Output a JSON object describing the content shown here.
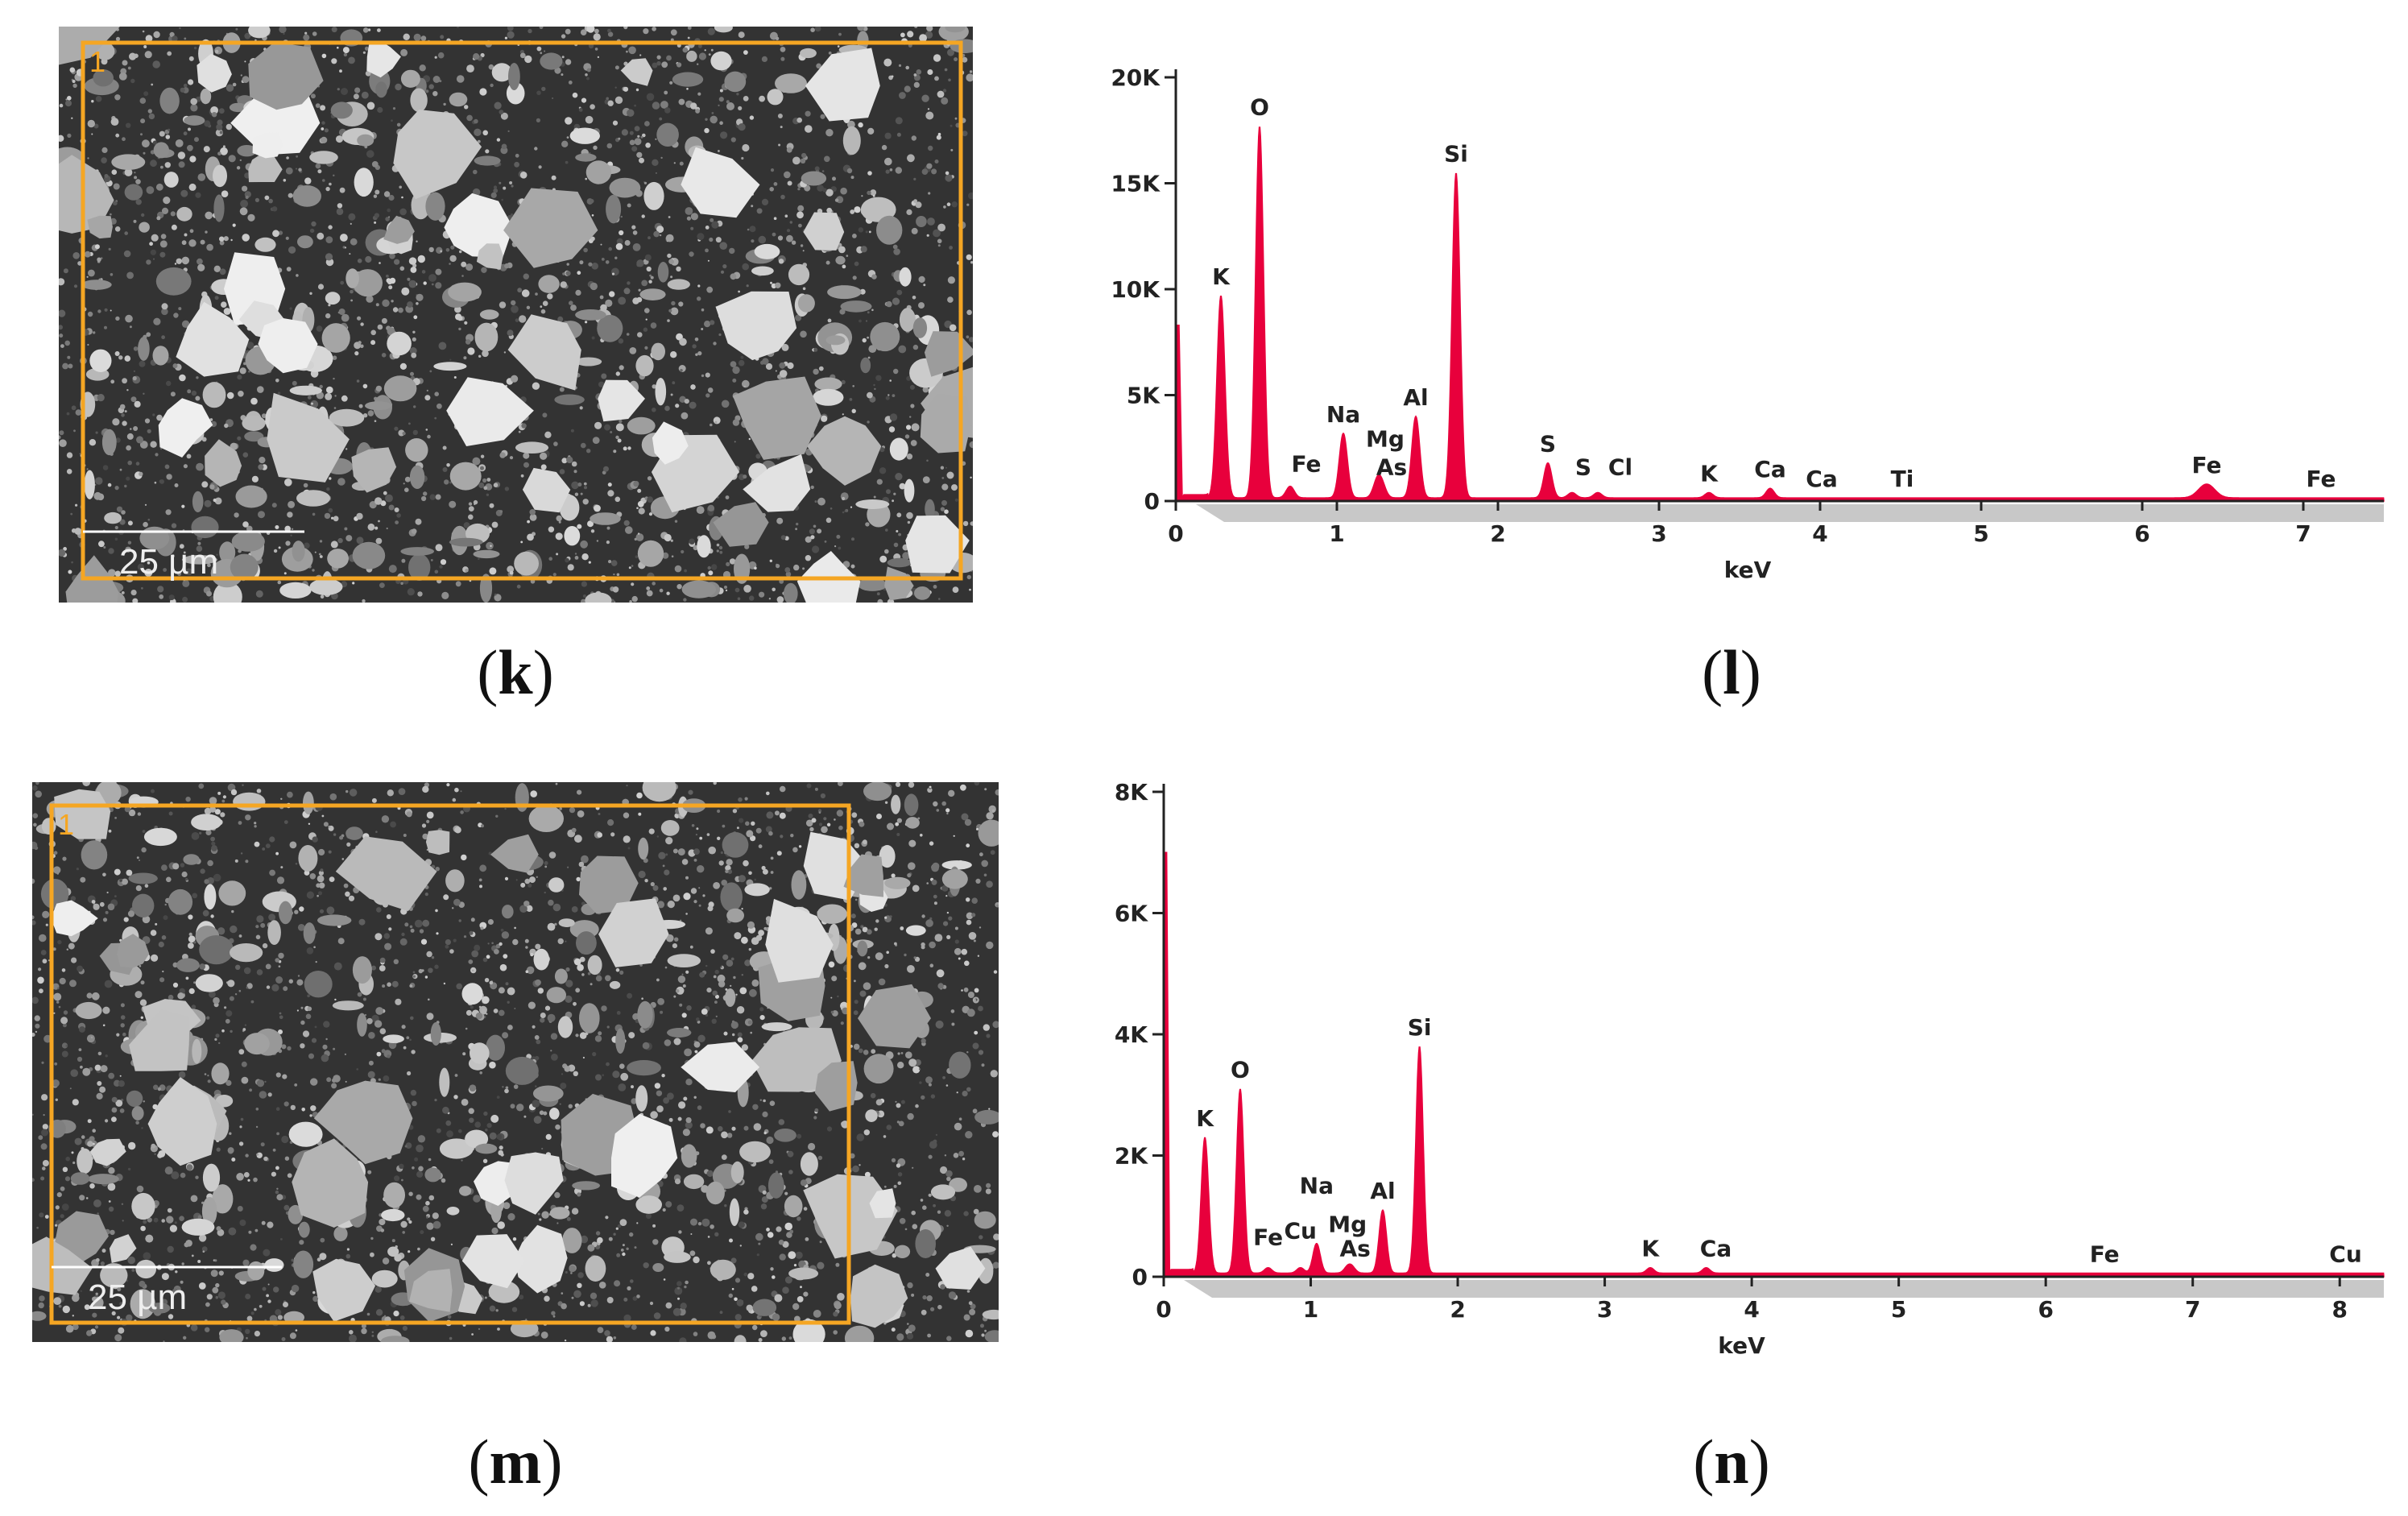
{
  "figure": {
    "panels": [
      {
        "id": "k",
        "caption_open": "(",
        "caption_letter": "k",
        "caption_close": ")",
        "type": "sem",
        "scale_label": "25 µm",
        "roi_label": "1"
      },
      {
        "id": "l",
        "caption_open": "(",
        "caption_letter": "l",
        "caption_close": ")",
        "type": "eds"
      },
      {
        "id": "m",
        "caption_open": "(",
        "caption_letter": "m",
        "caption_close": ")",
        "type": "sem",
        "scale_label": "25 µm",
        "roi_label": "1"
      },
      {
        "id": "n",
        "caption_open": "(",
        "caption_letter": "n",
        "caption_close": ")",
        "type": "eds"
      }
    ]
  },
  "colors": {
    "spectrum": "#e8003c",
    "roi": "#f5a623",
    "axis": "#222222",
    "shade": "#c8c8c8"
  },
  "chart_data": [
    {
      "panel": "l",
      "type": "line",
      "title": "",
      "xlabel": "keV",
      "ylabel": "",
      "xlim": [
        0,
        7.5
      ],
      "ylim": [
        0,
        20000
      ],
      "x_ticks": [
        0,
        1,
        2,
        3,
        4,
        5,
        6,
        7
      ],
      "y_ticks": [
        {
          "value": 0,
          "label": "0"
        },
        {
          "value": 5000,
          "label": "5K"
        },
        {
          "value": 10000,
          "label": "10K"
        },
        {
          "value": 15000,
          "label": "15K"
        },
        {
          "value": 20000,
          "label": "20K"
        }
      ],
      "baseline_counts": 150,
      "start_counts": 8300,
      "peaks": [
        {
          "element": "K",
          "kev": 0.28,
          "counts": 9700
        },
        {
          "element": "O",
          "kev": 0.52,
          "counts": 17700
        },
        {
          "element": "Fe",
          "kev": 0.71,
          "counts": 700
        },
        {
          "element": "Na",
          "kev": 1.04,
          "counts": 3200
        },
        {
          "element": "Mg",
          "kev": 1.25,
          "counts": 900
        },
        {
          "element": "As",
          "kev": 1.28,
          "counts": 700
        },
        {
          "element": "Al",
          "kev": 1.49,
          "counts": 4000
        },
        {
          "element": "Si",
          "kev": 1.74,
          "counts": 15500
        },
        {
          "element": "S",
          "kev": 2.31,
          "counts": 1800
        },
        {
          "element": "S",
          "kev": 2.46,
          "counts": 400
        },
        {
          "element": "Cl",
          "kev": 2.62,
          "counts": 400
        },
        {
          "element": "K",
          "kev": 3.31,
          "counts": 400
        },
        {
          "element": "Ca",
          "kev": 3.69,
          "counts": 600
        },
        {
          "element": "Ca",
          "kev": 4.01,
          "counts": 150
        },
        {
          "element": "Ti",
          "kev": 4.51,
          "counts": 150
        },
        {
          "element": "Fe",
          "kev": 6.4,
          "counts": 800
        },
        {
          "element": "Fe",
          "kev": 7.06,
          "counts": 150
        }
      ]
    },
    {
      "panel": "n",
      "type": "line",
      "title": "",
      "xlabel": "keV",
      "ylabel": "",
      "xlim": [
        0,
        8.3
      ],
      "ylim": [
        0,
        8000
      ],
      "x_ticks": [
        0,
        1,
        2,
        3,
        4,
        5,
        6,
        7,
        8
      ],
      "y_ticks": [
        {
          "value": 0,
          "label": "0"
        },
        {
          "value": 2000,
          "label": "2K"
        },
        {
          "value": 4000,
          "label": "4K"
        },
        {
          "value": 6000,
          "label": "6K"
        },
        {
          "value": 8000,
          "label": "8K"
        }
      ],
      "baseline_counts": 60,
      "start_counts": 7000,
      "peaks": [
        {
          "element": "K",
          "kev": 0.28,
          "counts": 2300
        },
        {
          "element": "O",
          "kev": 0.52,
          "counts": 3100
        },
        {
          "element": "Fe",
          "kev": 0.71,
          "counts": 150
        },
        {
          "element": "Cu",
          "kev": 0.93,
          "counts": 150
        },
        {
          "element": "Na",
          "kev": 1.04,
          "counts": 550
        },
        {
          "element": "Mg",
          "kev": 1.25,
          "counts": 150
        },
        {
          "element": "As",
          "kev": 1.28,
          "counts": 150
        },
        {
          "element": "Al",
          "kev": 1.49,
          "counts": 1100
        },
        {
          "element": "Si",
          "kev": 1.74,
          "counts": 3800
        },
        {
          "element": "K",
          "kev": 3.31,
          "counts": 150
        },
        {
          "element": "Ca",
          "kev": 3.69,
          "counts": 150
        },
        {
          "element": "Fe",
          "kev": 6.4,
          "counts": 60
        },
        {
          "element": "Cu",
          "kev": 8.04,
          "counts": 60
        }
      ]
    }
  ]
}
